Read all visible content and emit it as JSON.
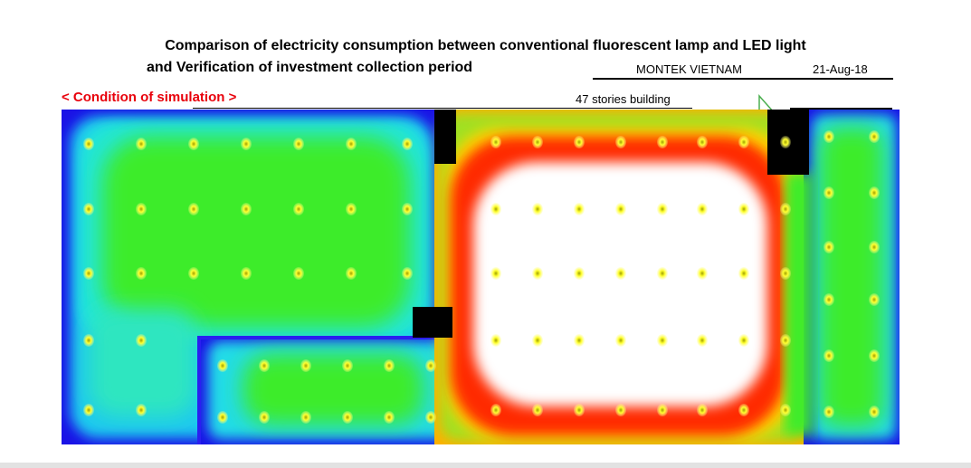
{
  "document": {
    "title_line1": "Comparison of electricity consumption between conventional fluorescent lamp and LED light",
    "title_line2": "and Verification of investment collection period",
    "company": "MONTEK VIETNAM",
    "date": "21-Aug-18",
    "section_heading": "< Condition of simulation >",
    "building_info": "47  stories building"
  },
  "colors": {
    "heading_red": "#e8000b",
    "wall_blue": "#2a1ef0",
    "zone_cyan": "#22e8e0",
    "zone_green": "#2ee81a",
    "hot_red": "#ff1a00",
    "hot_yellow": "#ffe000",
    "core_white": "#ffffff",
    "column_black": "#000000",
    "fixture_yellow": "#ffff40"
  },
  "icons": {
    "fixture": "light-fixture-dot-icon",
    "pointer": "triangle-pointer-icon"
  }
}
